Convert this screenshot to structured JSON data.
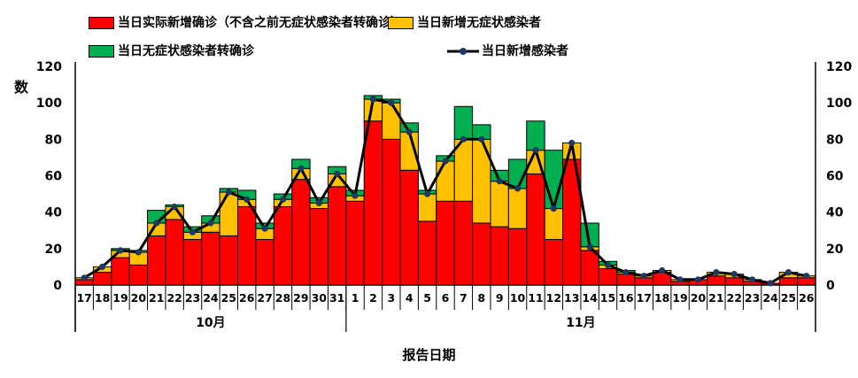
{
  "legend": {
    "items": [
      {
        "label": "当日实际新增确诊（不含之前无症状感染者转确诊）",
        "type": "swatch",
        "color": "#FF0000"
      },
      {
        "label": "当日新增无症状感染者",
        "type": "swatch",
        "color": "#FFC000"
      },
      {
        "label": "当日无症状感染者转确诊",
        "type": "swatch",
        "color": "#00B050"
      },
      {
        "label": "当日新增感染者",
        "type": "line",
        "color": "#000000",
        "marker_color": "#1F3864"
      }
    ]
  },
  "axes": {
    "y_label": "数",
    "x_label": "报告日期",
    "y_ticks": [
      0,
      20,
      40,
      60,
      80,
      100,
      120
    ],
    "y_max": 120
  },
  "chart_data": {
    "type": "bar",
    "subtype": "stacked-bars-with-line-overlay",
    "title": "",
    "xlabel": "报告日期",
    "ylabel": "数",
    "ylim": [
      0,
      120
    ],
    "grid": false,
    "legend_position": "top",
    "months": [
      {
        "label": "10月",
        "count": 15
      },
      {
        "label": "11月",
        "count": 26
      }
    ],
    "categories": [
      "17",
      "18",
      "19",
      "20",
      "21",
      "22",
      "23",
      "24",
      "25",
      "26",
      "27",
      "28",
      "29",
      "30",
      "31",
      "1",
      "2",
      "3",
      "4",
      "5",
      "6",
      "7",
      "8",
      "9",
      "10",
      "11",
      "12",
      "13",
      "14",
      "15",
      "16",
      "17",
      "18",
      "19",
      "20",
      "21",
      "22",
      "23",
      "24",
      "25",
      "26"
    ],
    "series": [
      {
        "name": "当日实际新增确诊（不含之前无症状感染者转确诊）",
        "color": "#FF0000",
        "values": [
          3,
          7,
          15,
          11,
          27,
          36,
          25,
          29,
          27,
          43,
          25,
          43,
          58,
          42,
          54,
          46,
          90,
          80,
          63,
          35,
          46,
          46,
          34,
          32,
          31,
          61,
          25,
          69,
          19,
          9,
          6,
          4,
          7,
          2,
          3,
          5,
          4,
          2,
          1,
          4,
          4
        ]
      },
      {
        "name": "当日新增无症状感染者",
        "color": "#FFC000",
        "values": [
          1,
          3,
          4,
          7,
          7,
          7,
          4,
          5,
          24,
          4,
          6,
          4,
          6,
          3,
          7,
          3,
          12,
          20,
          21,
          15,
          22,
          34,
          46,
          25,
          22,
          13,
          17,
          9,
          2,
          2,
          1,
          1,
          1,
          1,
          0,
          2,
          2,
          1,
          0,
          3,
          1
        ]
      },
      {
        "name": "当日无症状感染者转确诊",
        "color": "#00B050",
        "values": [
          0,
          0,
          1,
          1,
          7,
          1,
          3,
          4,
          2,
          5,
          3,
          3,
          5,
          3,
          4,
          3,
          2,
          2,
          5,
          2,
          3,
          18,
          8,
          6,
          16,
          16,
          32,
          0,
          13,
          2,
          1,
          0,
          0,
          0,
          0,
          0,
          0,
          0,
          0,
          0,
          0
        ]
      }
    ],
    "line_series": {
      "name": "当日新增感染者",
      "color": "#000000",
      "marker_color": "#1F3864",
      "values": [
        4,
        10,
        19,
        18,
        34,
        43,
        29,
        34,
        51,
        47,
        31,
        47,
        64,
        45,
        61,
        49,
        102,
        100,
        84,
        50,
        68,
        80,
        80,
        57,
        53,
        74,
        42,
        78,
        21,
        11,
        7,
        5,
        8,
        3,
        3,
        7,
        6,
        3,
        1,
        7,
        5
      ]
    }
  }
}
